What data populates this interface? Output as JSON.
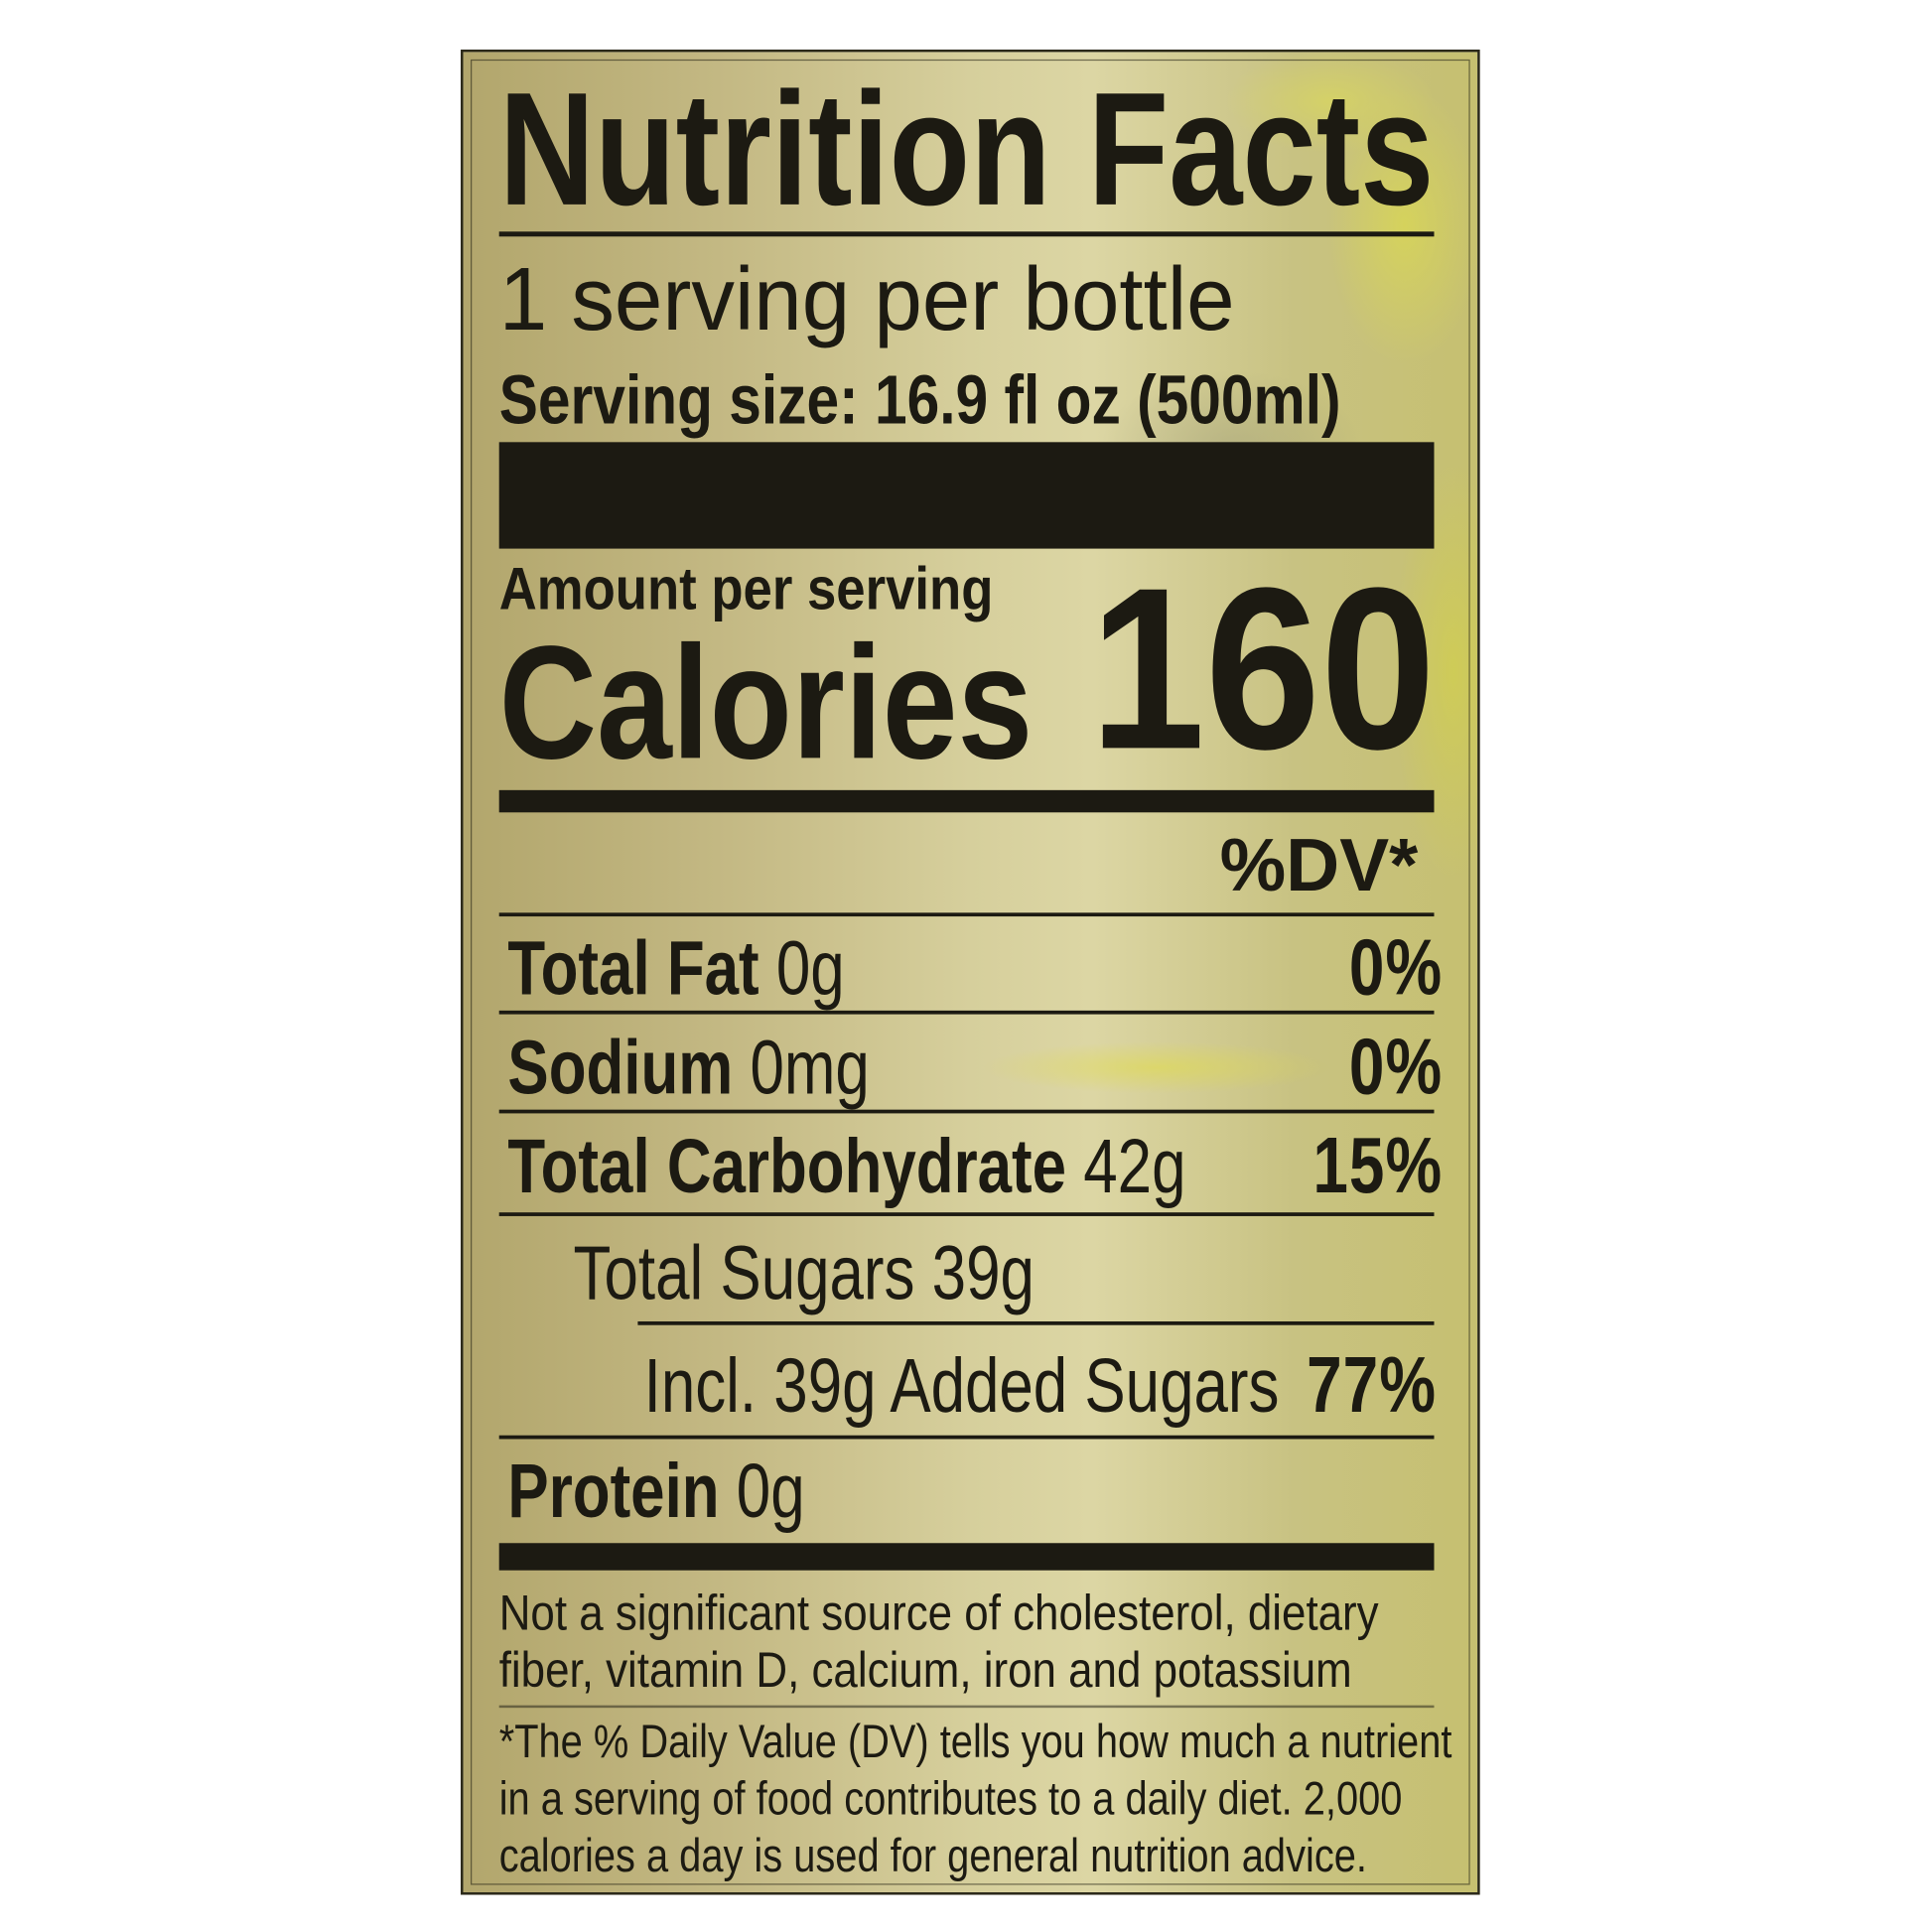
{
  "title": "Nutrition Facts",
  "servings": "1 serving per bottle",
  "serving_size": "Serving size: 16.9 fl oz (500ml)",
  "amount_per_serving": "Amount per serving",
  "calories_label": "Calories",
  "calories_value": "160",
  "dv_header": "%DV*",
  "nutrients": [
    {
      "name": "Total Fat",
      "amount": "0g",
      "dv": "0%"
    },
    {
      "name": "Sodium",
      "amount": "0mg",
      "dv": "0%"
    },
    {
      "name": "Total Carbohydrate",
      "amount": "42g",
      "dv": "15%"
    },
    {
      "name": "Total Sugars",
      "amount": "39g",
      "dv": ""
    },
    {
      "name": "Incl. 39g Added Sugars",
      "amount": "",
      "dv": "77%"
    },
    {
      "name": "Protein",
      "amount": "0g",
      "dv": ""
    }
  ],
  "footnote_nutrients": [
    "Not a significant source of cholesterol, dietary",
    "fiber, vitamin D, calcium, iron and potassium"
  ],
  "footnote_dv": [
    "*The % Daily Value (DV) tells you how much a nutrient",
    "in a serving of food contributes to a daily diet. 2,000",
    "calories a day is used for general nutrition advice."
  ]
}
